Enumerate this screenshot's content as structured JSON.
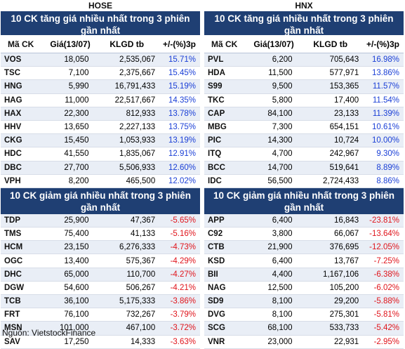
{
  "hose": {
    "exchange": "HOSE",
    "gainers_title": "10 CK tăng giá nhiều nhất trong 3 phiên gần nhất",
    "losers_title": "10 CK giảm giá nhiều nhất trong 3 phiên gần nhất",
    "gainers": [
      [
        "VOS",
        "18,050",
        "2,535,067",
        "15.71%"
      ],
      [
        "TSC",
        "7,100",
        "2,375,667",
        "15.45%"
      ],
      [
        "HNG",
        "5,990",
        "16,791,433",
        "15.19%"
      ],
      [
        "HAG",
        "11,000",
        "22,517,667",
        "14.35%"
      ],
      [
        "HAX",
        "22,300",
        "812,933",
        "13.78%"
      ],
      [
        "HHV",
        "13,650",
        "2,227,133",
        "13.75%"
      ],
      [
        "CKG",
        "15,450",
        "1,053,933",
        "13.19%"
      ],
      [
        "HDC",
        "41,550",
        "1,835,067",
        "12.91%"
      ],
      [
        "DBC",
        "27,700",
        "5,506,933",
        "12.60%"
      ],
      [
        "VPH",
        "8,200",
        "465,500",
        "12.02%"
      ]
    ],
    "losers": [
      [
        "TDP",
        "25,900",
        "47,367",
        "-5.65%"
      ],
      [
        "TMS",
        "75,400",
        "41,133",
        "-5.16%"
      ],
      [
        "HCM",
        "23,150",
        "6,276,333",
        "-4.73%"
      ],
      [
        "OGC",
        "13,400",
        "575,367",
        "-4.29%"
      ],
      [
        "DHC",
        "65,000",
        "110,700",
        "-4.27%"
      ],
      [
        "DGW",
        "54,600",
        "506,267",
        "-4.21%"
      ],
      [
        "TCB",
        "36,100",
        "5,175,333",
        "-3.86%"
      ],
      [
        "FRT",
        "76,100",
        "732,267",
        "-3.79%"
      ],
      [
        "MSN",
        "101,000",
        "467,100",
        "-3.72%"
      ],
      [
        "SAV",
        "17,250",
        "14,333",
        "-3.63%"
      ]
    ]
  },
  "hnx": {
    "exchange": "HNX",
    "gainers_title": "10 CK tăng giá nhiều nhất trong 3 phiên gần nhất",
    "losers_title": "10 CK giảm giá nhiều nhất trong 3 phiên gần nhất",
    "gainers": [
      [
        "PVL",
        "6,200",
        "705,643",
        "16.98%"
      ],
      [
        "HDA",
        "11,500",
        "577,971",
        "13.86%"
      ],
      [
        "S99",
        "9,500",
        "153,365",
        "11.57%"
      ],
      [
        "TKC",
        "5,800",
        "17,400",
        "11.54%"
      ],
      [
        "CAP",
        "84,100",
        "23,133",
        "11.39%"
      ],
      [
        "MBG",
        "7,300",
        "654,151",
        "10.61%"
      ],
      [
        "PIC",
        "14,300",
        "10,724",
        "10.00%"
      ],
      [
        "ITQ",
        "4,700",
        "242,967",
        "9.30%"
      ],
      [
        "BCC",
        "14,700",
        "519,641",
        "8.89%"
      ],
      [
        "IDC",
        "56,500",
        "2,724,433",
        "8.86%"
      ]
    ],
    "losers": [
      [
        "APP",
        "6,400",
        "16,843",
        "-23.81%"
      ],
      [
        "C92",
        "3,800",
        "66,067",
        "-13.64%"
      ],
      [
        "CTB",
        "21,900",
        "376,695",
        "-12.05%"
      ],
      [
        "KSD",
        "6,400",
        "13,767",
        "-7.25%"
      ],
      [
        "BII",
        "4,400",
        "1,167,106",
        "-6.38%"
      ],
      [
        "NAG",
        "12,500",
        "105,200",
        "-6.02%"
      ],
      [
        "SD9",
        "8,100",
        "29,200",
        "-5.88%"
      ],
      [
        "DVG",
        "8,100",
        "275,301",
        "-5.81%"
      ],
      [
        "SCG",
        "68,100",
        "533,733",
        "-5.42%"
      ],
      [
        "VNR",
        "23,000",
        "22,931",
        "-2.95%"
      ]
    ]
  },
  "columns": [
    "Mã CK",
    "Giá(13/07)",
    "KLGD tb",
    "+/-(%)3p"
  ],
  "colors": {
    "banner": "#1f3f73",
    "up": "#1a3fd6",
    "down": "#e0141b"
  },
  "source": "Nguồn: VietstockFinance"
}
